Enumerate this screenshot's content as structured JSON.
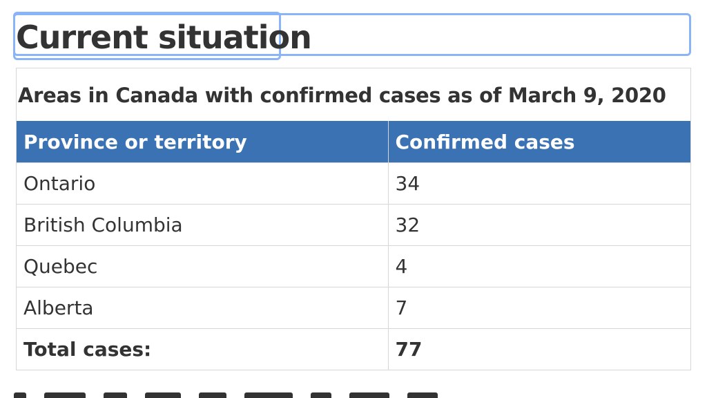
{
  "page": {
    "title": "Current situation"
  },
  "table": {
    "caption": "Areas in Canada with confirmed cases as of March 9, 2020",
    "headers": [
      "Province or territory",
      "Confirmed cases"
    ],
    "rows": [
      {
        "province": "Ontario",
        "cases": "34"
      },
      {
        "province": "British Columbia",
        "cases": "32"
      },
      {
        "province": "Quebec",
        "cases": "4"
      },
      {
        "province": "Alberta",
        "cases": "7"
      }
    ],
    "total": {
      "label": "Total cases:",
      "value": "77"
    }
  },
  "colors": {
    "header_background": "#3b72b3",
    "focus_outline": "#8ab4f8",
    "text": "#333333",
    "border": "#d6d6d6"
  }
}
